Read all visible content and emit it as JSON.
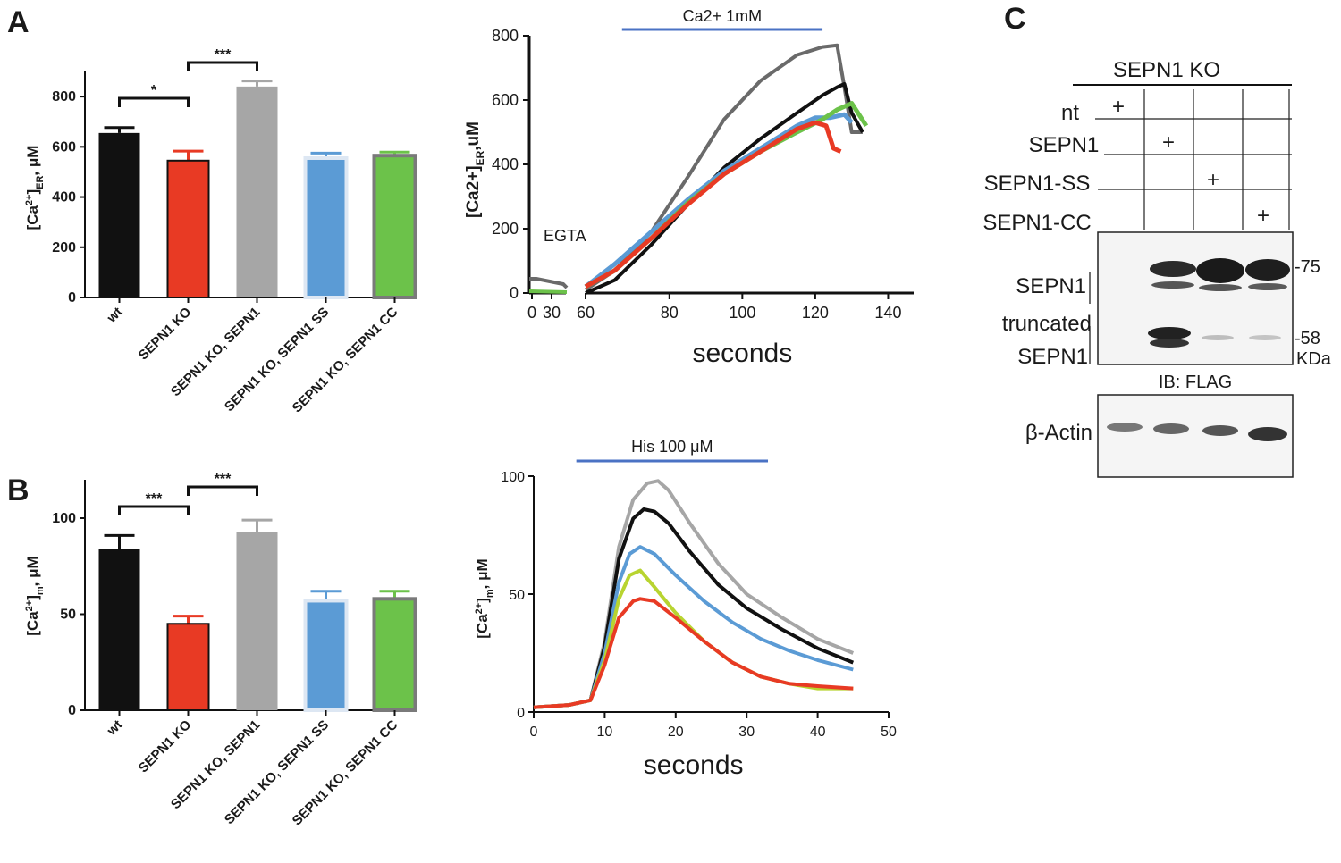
{
  "panels": {
    "A": "A",
    "B": "B",
    "C": "C"
  },
  "colors": {
    "wt": "#111111",
    "ko": "#e83a24",
    "rescue": "#a6a6a6",
    "ss": "#5b9bd5",
    "cc": "#6cc24a",
    "trace_gray": "#6a6a6a",
    "trace_blue": "#5b9bd5",
    "trace_green": "#6cc24a",
    "trace_yellowgreen": "#b8d430",
    "trace_red": "#e83a24",
    "trace_lightgray": "#a6a6a6",
    "treatment_bar": "#4a72c4"
  },
  "chart_data": [
    {
      "id": "A-bar",
      "type": "bar",
      "categories": [
        "wt",
        "SEPN1 KO",
        "SEPN1 KO, SEPN1",
        "SEPN1 KO, SEPN1 SS",
        "SEPN1 KO, SEPN1 CC"
      ],
      "values": [
        655,
        545,
        840,
        555,
        565
      ],
      "errors": [
        22,
        38,
        22,
        20,
        14
      ],
      "yticks": [
        0,
        200,
        400,
        600,
        800
      ],
      "ylim": [
        0,
        900
      ],
      "ylabel_main": "[Ca",
      "ylabel_sup": "2+",
      "ylabel_mid": "]",
      "ylabel_sub": "ER",
      "ylabel_tail": ", μM",
      "significance": [
        {
          "from": 0,
          "to": 1,
          "label": "*"
        },
        {
          "from": 1,
          "to": 2,
          "label": "***"
        }
      ]
    },
    {
      "id": "A-line",
      "type": "line",
      "title": "Ca2+ 1mM",
      "xlabel": "seconds",
      "ylabel_main": "[Ca2+]",
      "ylabel_sub": "ER",
      "ylabel_tail": ",uM",
      "annotation": "EGTA",
      "xticks": [
        "0",
        "30",
        "60",
        "80",
        "100",
        "120",
        "140"
      ],
      "yticks": [
        0,
        200,
        400,
        600,
        800
      ],
      "xlim": [
        57,
        147
      ],
      "ylim": [
        0,
        800
      ],
      "treatment": [
        67,
        122
      ],
      "pre_segment": {
        "xlabel_positions": [
          "0",
          "30"
        ],
        "gray": [
          50,
          40,
          32,
          28
        ],
        "baseline": 0
      },
      "series": [
        {
          "name": "gray",
          "x": [
            57,
            65,
            75,
            85,
            95,
            105,
            115,
            122,
            126,
            128,
            130,
            133
          ],
          "y": [
            10,
            70,
            190,
            360,
            540,
            660,
            740,
            765,
            770,
            640,
            500,
            500
          ]
        },
        {
          "name": "black",
          "x": [
            57,
            65,
            75,
            85,
            95,
            105,
            115,
            122,
            126,
            128,
            130,
            133
          ],
          "y": [
            0,
            40,
            150,
            275,
            390,
            480,
            560,
            615,
            640,
            650,
            560,
            500
          ]
        },
        {
          "name": "blue",
          "x": [
            57,
            65,
            75,
            85,
            95,
            105,
            115,
            120,
            124,
            128,
            130
          ],
          "y": [
            20,
            90,
            190,
            290,
            380,
            450,
            520,
            545,
            545,
            555,
            530
          ]
        },
        {
          "name": "green",
          "x": [
            57,
            65,
            75,
            85,
            95,
            105,
            115,
            122,
            126,
            130,
            134
          ],
          "y": [
            20,
            70,
            170,
            280,
            370,
            440,
            500,
            540,
            570,
            590,
            520
          ]
        },
        {
          "name": "red",
          "x": [
            57,
            65,
            75,
            85,
            95,
            105,
            115,
            120,
            123,
            125,
            127
          ],
          "y": [
            20,
            70,
            170,
            275,
            370,
            440,
            510,
            530,
            520,
            450,
            440
          ]
        }
      ]
    },
    {
      "id": "B-bar",
      "type": "bar",
      "categories": [
        "wt",
        "SEPN1 KO",
        "SEPN1 KO, SEPN1",
        "SEPN1 KO, SEPN1 SS",
        "SEPN1 KO, SEPN1 CC"
      ],
      "values": [
        84,
        45,
        93,
        57,
        58
      ],
      "errors": [
        7,
        4,
        6,
        5,
        4
      ],
      "yticks": [
        0,
        50,
        100
      ],
      "ylim": [
        0,
        120
      ],
      "ylabel_main": "[Ca",
      "ylabel_sup": "2+",
      "ylabel_mid": "]",
      "ylabel_sub": "m",
      "ylabel_tail": ", μM",
      "significance": [
        {
          "from": 0,
          "to": 1,
          "label": "***"
        },
        {
          "from": 1,
          "to": 2,
          "label": "***"
        }
      ]
    },
    {
      "id": "B-line",
      "type": "line",
      "title": "His 100 μM",
      "xlabel": "seconds",
      "ylabel_main": "[Ca",
      "ylabel_sup": "2+",
      "ylabel_mid": "]",
      "ylabel_sub": "m",
      "ylabel_tail": ", μM",
      "xticks": [
        0,
        10,
        20,
        30,
        40,
        50
      ],
      "yticks": [
        0,
        50,
        100
      ],
      "xlim": [
        0,
        50
      ],
      "ylim": [
        0,
        100
      ],
      "treatment": [
        6,
        33
      ],
      "series": [
        {
          "name": "lightgray",
          "x": [
            0,
            5,
            8,
            10,
            12,
            14,
            16,
            17.5,
            19,
            22,
            26,
            30,
            35,
            40,
            45
          ],
          "y": [
            2,
            3,
            5,
            30,
            70,
            90,
            97,
            98,
            94,
            80,
            63,
            50,
            40,
            31,
            25
          ]
        },
        {
          "name": "black",
          "x": [
            0,
            5,
            8,
            10,
            12,
            14,
            15.5,
            17,
            19,
            22,
            26,
            30,
            35,
            40,
            45
          ],
          "y": [
            2,
            3,
            5,
            28,
            65,
            82,
            86,
            85,
            80,
            68,
            54,
            44,
            35,
            27,
            21
          ]
        },
        {
          "name": "blue",
          "x": [
            0,
            5,
            8,
            10,
            12,
            13.5,
            15,
            17,
            20,
            24,
            28,
            32,
            36,
            40,
            45
          ],
          "y": [
            2,
            3,
            5,
            25,
            55,
            67,
            70,
            67,
            58,
            47,
            38,
            31,
            26,
            22,
            18
          ]
        },
        {
          "name": "yellowgreen",
          "x": [
            0,
            5,
            8,
            10,
            12,
            13.5,
            15,
            17,
            20,
            24,
            28,
            32,
            36,
            40,
            45
          ],
          "y": [
            2,
            3,
            5,
            22,
            48,
            58,
            60,
            53,
            42,
            30,
            21,
            15,
            12,
            10,
            10
          ]
        },
        {
          "name": "red",
          "x": [
            0,
            5,
            8,
            10,
            12,
            14,
            15,
            17,
            20,
            24,
            28,
            32,
            36,
            40,
            45
          ],
          "y": [
            2,
            3,
            5,
            20,
            40,
            47,
            48,
            47,
            40,
            30,
            21,
            15,
            12,
            11,
            10
          ]
        }
      ]
    }
  ],
  "blot": {
    "header": "SEPN1 KO",
    "row_labels": [
      "nt",
      "SEPN1",
      "SEPN1-SS",
      "SEPN1-CC"
    ],
    "plus": "+",
    "band_labels": [
      "SEPN1",
      "truncated",
      "SEPN1"
    ],
    "markers": [
      "-75",
      "-58",
      "KDa"
    ],
    "ib_label": "IB: FLAG",
    "loading_label": "β-Actin"
  }
}
